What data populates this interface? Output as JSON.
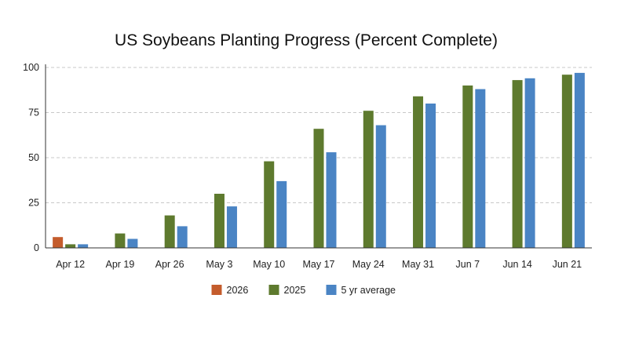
{
  "chart_data": {
    "type": "bar",
    "title": "US Soybeans Planting Progress (Percent Complete)",
    "xlabel": "",
    "ylabel": "",
    "ylim": [
      0,
      100
    ],
    "yticks": [
      0,
      25,
      50,
      75,
      100
    ],
    "grid": true,
    "legend_position": "bottom",
    "categories": [
      "Apr 12",
      "Apr 19",
      "Apr 26",
      "May 3",
      "May 10",
      "May 17",
      "May 24",
      "May 31",
      "Jun 7",
      "Jun 14",
      "Jun 21"
    ],
    "series": [
      {
        "name": "2026",
        "color": "#c45c2c",
        "values": [
          6,
          null,
          null,
          null,
          null,
          null,
          null,
          null,
          null,
          null,
          null
        ]
      },
      {
        "name": "2025",
        "color": "#5e7a2e",
        "values": [
          2,
          8,
          18,
          30,
          48,
          66,
          76,
          84,
          90,
          93,
          96
        ]
      },
      {
        "name": "5 yr average",
        "color": "#4a84c4",
        "values": [
          2,
          5,
          12,
          23,
          37,
          53,
          68,
          80,
          88,
          94,
          97
        ]
      }
    ]
  }
}
